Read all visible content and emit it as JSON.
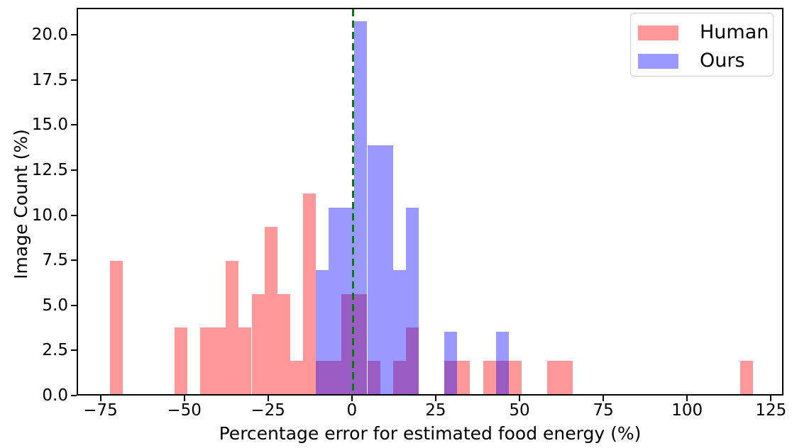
{
  "chart_data": {
    "type": "bar",
    "title": "",
    "xlabel": "Percentage error for estimated food energy (%)",
    "ylabel": "Image Count (%)",
    "xlim": [
      -82.1,
      128.75
    ],
    "ylim": [
      0,
      21.5
    ],
    "x_tick_values": [
      -75,
      -50,
      -25,
      0,
      25,
      50,
      75,
      100,
      125
    ],
    "x_tick_labels": [
      "−75",
      "−50",
      "−25",
      "0",
      "25",
      "50",
      "75",
      "100",
      "125"
    ],
    "y_tick_values": [
      0,
      2.5,
      5,
      7.5,
      10,
      12.5,
      15,
      17.5,
      20
    ],
    "y_tick_labels": [
      "0.0",
      "2.5",
      "5.0",
      "7.5",
      "10.0",
      "12.5",
      "15.0",
      "17.5",
      "20.0"
    ],
    "grid": false,
    "bin_width": 3.83,
    "reference_line": {
      "x": 0,
      "color": "#0b7a0b",
      "style": "dashed"
    },
    "legend": {
      "position": "upper right"
    },
    "series": [
      {
        "name": "Human",
        "fill": "rgba(255,0,0,0.4)",
        "legend_color": "#ff9999",
        "bars": [
          {
            "x0": -72.5,
            "x1": -68.67,
            "h": 7.41
          },
          {
            "x0": -53.33,
            "x1": -49.5,
            "h": 3.7
          },
          {
            "x0": -45.67,
            "x1": -41.83,
            "h": 3.7
          },
          {
            "x0": -41.83,
            "x1": -38.0,
            "h": 3.7
          },
          {
            "x0": -38.0,
            "x1": -34.17,
            "h": 7.41
          },
          {
            "x0": -34.17,
            "x1": -30.33,
            "h": 3.7
          },
          {
            "x0": -30.33,
            "x1": -26.5,
            "h": 5.56
          },
          {
            "x0": -26.5,
            "x1": -22.67,
            "h": 9.26
          },
          {
            "x0": -22.67,
            "x1": -18.83,
            "h": 5.56
          },
          {
            "x0": -18.83,
            "x1": -15.0,
            "h": 1.85
          },
          {
            "x0": -15.0,
            "x1": -11.17,
            "h": 11.11
          },
          {
            "x0": -11.17,
            "x1": -7.33,
            "h": 1.85
          },
          {
            "x0": -7.33,
            "x1": -3.5,
            "h": 1.85
          },
          {
            "x0": -3.5,
            "x1": 0.33,
            "h": 5.56
          },
          {
            "x0": 0.33,
            "x1": 4.17,
            "h": 5.56
          },
          {
            "x0": 4.17,
            "x1": 8.0,
            "h": 1.85
          },
          {
            "x0": 11.83,
            "x1": 15.67,
            "h": 1.85
          },
          {
            "x0": 15.67,
            "x1": 19.5,
            "h": 3.7
          },
          {
            "x0": 27.17,
            "x1": 31.0,
            "h": 1.85
          },
          {
            "x0": 31.0,
            "x1": 34.83,
            "h": 1.85
          },
          {
            "x0": 38.67,
            "x1": 42.5,
            "h": 1.85
          },
          {
            "x0": 42.5,
            "x1": 46.33,
            "h": 1.85
          },
          {
            "x0": 46.33,
            "x1": 50.17,
            "h": 1.85
          },
          {
            "x0": 57.83,
            "x1": 61.67,
            "h": 1.85
          },
          {
            "x0": 61.67,
            "x1": 65.5,
            "h": 1.85
          },
          {
            "x0": 115.33,
            "x1": 119.17,
            "h": 1.85
          }
        ]
      },
      {
        "name": "Ours",
        "fill": "rgba(0,0,255,0.4)",
        "legend_color": "#9999ff",
        "bars": [
          {
            "x0": -11.17,
            "x1": -7.33,
            "h": 6.9
          },
          {
            "x0": -7.33,
            "x1": -3.5,
            "h": 10.34
          },
          {
            "x0": -3.5,
            "x1": 0.33,
            "h": 10.34
          },
          {
            "x0": 0.33,
            "x1": 4.17,
            "h": 20.69
          },
          {
            "x0": 4.17,
            "x1": 8.0,
            "h": 13.79
          },
          {
            "x0": 8.0,
            "x1": 11.83,
            "h": 13.79
          },
          {
            "x0": 11.83,
            "x1": 15.67,
            "h": 6.9
          },
          {
            "x0": 15.67,
            "x1": 19.5,
            "h": 10.34
          },
          {
            "x0": 27.17,
            "x1": 31.0,
            "h": 3.45
          },
          {
            "x0": 42.5,
            "x1": 46.33,
            "h": 3.45
          }
        ]
      }
    ]
  }
}
